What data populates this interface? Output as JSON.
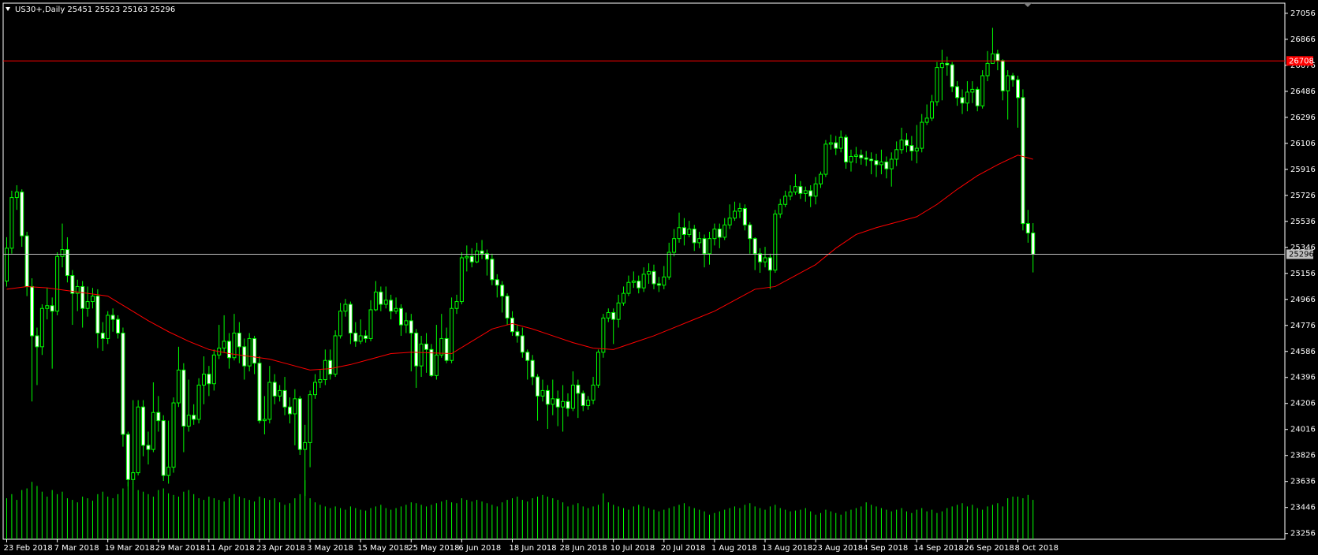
{
  "chart_data": {
    "type": "candlestick",
    "title": "US30+,Daily  25451 25523 25163 25296",
    "categories": [
      "23 Feb 2018",
      null,
      null,
      null,
      null,
      null,
      null,
      null,
      null,
      null,
      "7 Mar 2018",
      null,
      null,
      null,
      null,
      null,
      null,
      null,
      null,
      null,
      "19 Mar 2018",
      null,
      null,
      null,
      null,
      null,
      null,
      null,
      null,
      null,
      "29 Mar 2018",
      null,
      null,
      null,
      null,
      null,
      null,
      null,
      null,
      null,
      "11 Apr 2018",
      null,
      null,
      null,
      null,
      null,
      null,
      null,
      null,
      null,
      "23 Apr 2018",
      null,
      null,
      null,
      null,
      null,
      null,
      null,
      null,
      null,
      "3 May 2018",
      null,
      null,
      null,
      null,
      null,
      null,
      null,
      null,
      null,
      "15 May 2018",
      null,
      null,
      null,
      null,
      null,
      null,
      null,
      null,
      null,
      "25 May 2018",
      null,
      null,
      null,
      null,
      null,
      null,
      null,
      null,
      null,
      "6 Jun 2018",
      null,
      null,
      null,
      null,
      null,
      null,
      null,
      null,
      null,
      "18 Jun 2018",
      null,
      null,
      null,
      null,
      null,
      null,
      null,
      null,
      null,
      "28 Jun 2018",
      null,
      null,
      null,
      null,
      null,
      null,
      null,
      null,
      null,
      "10 Jul 2018",
      null,
      null,
      null,
      null,
      null,
      null,
      null,
      null,
      null,
      "20 Jul 2018",
      null,
      null,
      null,
      null,
      null,
      null,
      null,
      null,
      null,
      "1 Aug 2018",
      null,
      null,
      null,
      null,
      null,
      null,
      null,
      null,
      null,
      "13 Aug 2018",
      null,
      null,
      null,
      null,
      null,
      null,
      null,
      null,
      null,
      "23 Aug 2018",
      null,
      null,
      null,
      null,
      null,
      null,
      null,
      null,
      null,
      "4 Sep 2018",
      null,
      null,
      null,
      null,
      null,
      null,
      null,
      null,
      null,
      "14 Sep 2018",
      null,
      null,
      null,
      null,
      null,
      null,
      null,
      null,
      null,
      "26 Sep 2018",
      null,
      null,
      null,
      null,
      null,
      null,
      null,
      null,
      null,
      "8 Oct 2018",
      null,
      null,
      null
    ],
    "opens": [
      25100,
      25340,
      25710,
      25750,
      25430,
      25060,
      24700,
      24620,
      24900,
      24920,
      24880,
      25280,
      25330,
      25140,
      25010,
      25060,
      24900,
      24950,
      24990,
      24720,
      24680,
      24850,
      24820,
      24720,
      23980,
      23650,
      23700,
      24180,
      23900,
      23870,
      24140,
      24080,
      23680,
      23740,
      24210,
      24450,
      24040,
      24120,
      24090,
      24340,
      24420,
      24350,
      24560,
      24610,
      24660,
      24540,
      24720,
      24620,
      24480,
      24680,
      24500,
      24080,
      24090,
      24360,
      24260,
      24300,
      24180,
      24130,
      24240,
      23870,
      23920,
      24270,
      24360,
      24380,
      24520,
      24420,
      24700,
      24880,
      24930,
      24720,
      24660,
      24700,
      24680,
      24890,
      25020,
      24930,
      24960,
      24880,
      24900,
      24780,
      24810,
      24720,
      24480,
      24640,
      24600,
      24410,
      24560,
      24680,
      24520,
      24900,
      24950,
      25270,
      25280,
      25240,
      25320,
      25300,
      25260,
      25110,
      25070,
      24990,
      24830,
      24730,
      24700,
      24580,
      24520,
      24400,
      24260,
      24300,
      24200,
      24240,
      24180,
      24220,
      24170,
      24340,
      24280,
      24190,
      24230,
      24340,
      24580,
      24830,
      24870,
      24820,
      24940,
      25010,
      25090,
      25100,
      25050,
      25150,
      25170,
      25080,
      25070,
      25130,
      25310,
      25410,
      25490,
      25440,
      25480,
      25380,
      25410,
      25300,
      25410,
      25480,
      25420,
      25510,
      25560,
      25610,
      25630,
      25510,
      25410,
      25300,
      25240,
      25270,
      25180,
      25590,
      25660,
      25720,
      25750,
      25790,
      25740,
      25760,
      25720,
      25810,
      25880,
      26100,
      26110,
      26070,
      26150,
      25970,
      26010,
      26020,
      26000,
      25990,
      25980,
      25950,
      25970,
      25920,
      25990,
      26060,
      26130,
      26090,
      26050,
      26070,
      26260,
      26290,
      26410,
      26660,
      26690,
      26680,
      26520,
      26440,
      26400,
      26480,
      26500,
      26380,
      26600,
      26690,
      26760,
      26710,
      26490,
      26600,
      26570,
      26440,
      25520,
      25451
    ],
    "highs": [
      25420,
      25760,
      25800,
      25770,
      25460,
      25120,
      24760,
      24930,
      25050,
      24980,
      25310,
      25520,
      25420,
      25180,
      25110,
      25100,
      25060,
      25050,
      25040,
      24800,
      24880,
      24900,
      24850,
      24760,
      24000,
      24230,
      24230,
      24230,
      24000,
      24360,
      24260,
      24120,
      24080,
      24250,
      24620,
      24500,
      24380,
      24200,
      24390,
      24550,
      24480,
      24600,
      24780,
      24850,
      24720,
      24860,
      24800,
      24680,
      24720,
      24700,
      24550,
      24260,
      24480,
      24420,
      24340,
      24400,
      24250,
      24310,
      24260,
      24050,
      24300,
      24420,
      24450,
      24600,
      24600,
      24740,
      24940,
      24970,
      24950,
      24800,
      24820,
      24740,
      24960,
      25100,
      25060,
      25060,
      25000,
      24980,
      24930,
      24870,
      24860,
      24750,
      24700,
      24720,
      24640,
      24780,
      24860,
      24760,
      24980,
      25000,
      25310,
      25360,
      25340,
      25380,
      25400,
      25330,
      25300,
      25150,
      25100,
      25010,
      24880,
      24780,
      24760,
      24600,
      24560,
      24420,
      24380,
      24340,
      24380,
      24300,
      24340,
      24280,
      24440,
      24380,
      24300,
      24260,
      24400,
      24600,
      24860,
      24900,
      24900,
      25000,
      25060,
      25140,
      25170,
      25140,
      25200,
      25230,
      25220,
      25130,
      25210,
      25380,
      25480,
      25600,
      25560,
      25540,
      25510,
      25460,
      25440,
      25460,
      25520,
      25520,
      25560,
      25660,
      25680,
      25670,
      25660,
      25530,
      25420,
      25340,
      25350,
      25300,
      25620,
      25700,
      25760,
      25800,
      25880,
      25830,
      25790,
      25800,
      25860,
      25900,
      26130,
      26170,
      26160,
      26200,
      26170,
      26060,
      26080,
      26060,
      26050,
      26040,
      26030,
      26060,
      26010,
      26040,
      26120,
      26220,
      26180,
      26160,
      26240,
      26320,
      26390,
      26460,
      26700,
      26790,
      26740,
      26700,
      26560,
      26500,
      26560,
      26560,
      26520,
      26640,
      26780,
      26950,
      26790,
      26720,
      26640,
      26620,
      26600,
      26500,
      25620,
      25523
    ],
    "lows": [
      25060,
      25300,
      25620,
      25350,
      24990,
      24220,
      24340,
      24560,
      24820,
      24460,
      24850,
      25200,
      25090,
      24780,
      24880,
      24760,
      24840,
      24900,
      24610,
      24590,
      24640,
      24730,
      24680,
      23890,
      23600,
      23620,
      23680,
      23820,
      23760,
      23850,
      24000,
      23640,
      23620,
      23700,
      24180,
      23850,
      24000,
      24050,
      24060,
      24200,
      24260,
      24300,
      24530,
      24580,
      24460,
      24520,
      24500,
      24380,
      24440,
      24420,
      24060,
      23980,
      24060,
      24200,
      24220,
      24120,
      24060,
      23900,
      23830,
      23530,
      23740,
      24240,
      24320,
      24340,
      24380,
      24400,
      24680,
      24840,
      24640,
      24620,
      24640,
      24650,
      24660,
      24880,
      24880,
      24900,
      24820,
      24860,
      24700,
      24720,
      24440,
      24320,
      24400,
      24430,
      24400,
      24380,
      24540,
      24500,
      24500,
      24860,
      24930,
      25170,
      25200,
      25230,
      25260,
      25140,
      25070,
      24980,
      24870,
      24780,
      24700,
      24650,
      24540,
      24380,
      24340,
      24080,
      24220,
      24020,
      24120,
      24040,
      24000,
      24110,
      24150,
      24100,
      24150,
      24160,
      24200,
      24320,
      24540,
      24800,
      24640,
      24760,
      24920,
      24990,
      25050,
      25010,
      25020,
      25080,
      25040,
      25020,
      25040,
      25110,
      25280,
      25380,
      25360,
      25420,
      25320,
      25340,
      25200,
      25220,
      25360,
      25340,
      25400,
      25480,
      25540,
      25560,
      25470,
      25300,
      25180,
      25160,
      25200,
      25040,
      25160,
      25560,
      25640,
      25690,
      25730,
      25700,
      25680,
      25640,
      25660,
      25780,
      25860,
      26060,
      26020,
      26040,
      25920,
      25900,
      25960,
      25950,
      25940,
      25880,
      25860,
      25880,
      25850,
      25790,
      25940,
      26030,
      26040,
      25980,
      25960,
      26040,
      26240,
      26270,
      26380,
      26420,
      26600,
      26480,
      26380,
      26320,
      26340,
      26400,
      26340,
      26360,
      26560,
      26700,
      26640,
      26420,
      26280,
      26520,
      26220,
      25470,
      25380,
      25163
    ],
    "closes": [
      25340,
      25710,
      25750,
      25430,
      25060,
      24700,
      24620,
      24900,
      24920,
      24880,
      25280,
      25330,
      25140,
      25010,
      25060,
      24900,
      24950,
      24990,
      24720,
      24680,
      24850,
      24820,
      24720,
      23980,
      23650,
      23700,
      24180,
      23900,
      23870,
      24140,
      24080,
      23680,
      23740,
      24210,
      24450,
      24040,
      24120,
      24090,
      24340,
      24420,
      24350,
      24560,
      24610,
      24660,
      24540,
      24720,
      24620,
      24480,
      24680,
      24500,
      24080,
      24090,
      24360,
      24260,
      24300,
      24180,
      24130,
      24240,
      23870,
      23920,
      24270,
      24360,
      24380,
      24520,
      24420,
      24700,
      24880,
      24930,
      24720,
      24660,
      24700,
      24680,
      24890,
      25020,
      24930,
      24960,
      24880,
      24900,
      24780,
      24810,
      24720,
      24480,
      24640,
      24600,
      24410,
      24560,
      24680,
      24520,
      24900,
      24950,
      25270,
      25280,
      25240,
      25320,
      25300,
      25260,
      25110,
      25070,
      24990,
      24830,
      24730,
      24700,
      24580,
      24520,
      24400,
      24260,
      24300,
      24200,
      24240,
      24180,
      24220,
      24170,
      24340,
      24280,
      24190,
      24230,
      24340,
      24580,
      24830,
      24870,
      24820,
      24940,
      25010,
      25090,
      25100,
      25050,
      25150,
      25170,
      25080,
      25070,
      25130,
      25310,
      25410,
      25490,
      25440,
      25480,
      25380,
      25410,
      25300,
      25410,
      25480,
      25420,
      25510,
      25560,
      25610,
      25630,
      25510,
      25410,
      25300,
      25240,
      25270,
      25180,
      25590,
      25660,
      25720,
      25750,
      25790,
      25740,
      25760,
      25720,
      25810,
      25880,
      26100,
      26110,
      26070,
      26150,
      25970,
      26010,
      26020,
      26000,
      25990,
      25980,
      25950,
      25970,
      25920,
      25990,
      26060,
      26130,
      26090,
      26050,
      26070,
      26260,
      26290,
      26410,
      26660,
      26690,
      26680,
      26520,
      26440,
      26400,
      26480,
      26500,
      26380,
      26600,
      26690,
      26760,
      26710,
      26490,
      26600,
      26570,
      26440,
      25520,
      25451,
      25296
    ],
    "volumes": [
      50,
      55,
      48,
      60,
      62,
      70,
      65,
      58,
      52,
      60,
      55,
      58,
      50,
      48,
      45,
      52,
      50,
      47,
      55,
      58,
      52,
      50,
      55,
      62,
      70,
      68,
      60,
      58,
      55,
      52,
      60,
      62,
      56,
      54,
      52,
      58,
      60,
      55,
      50,
      48,
      52,
      50,
      48,
      46,
      50,
      55,
      52,
      50,
      48,
      46,
      52,
      50,
      48,
      50,
      45,
      42,
      44,
      50,
      55,
      72,
      50,
      45,
      42,
      40,
      38,
      40,
      38,
      36,
      40,
      38,
      36,
      35,
      38,
      40,
      42,
      38,
      36,
      38,
      40,
      42,
      45,
      44,
      42,
      40,
      42,
      44,
      46,
      48,
      45,
      44,
      50,
      48,
      46,
      48,
      46,
      44,
      42,
      40,
      45,
      48,
      50,
      52,
      48,
      46,
      50,
      52,
      54,
      52,
      50,
      48,
      45,
      40,
      42,
      44,
      40,
      38,
      40,
      42,
      56,
      45,
      42,
      40,
      38,
      36,
      40,
      42,
      40,
      38,
      36,
      34,
      36,
      38,
      40,
      42,
      44,
      40,
      38,
      36,
      34,
      30,
      32,
      34,
      36,
      38,
      40,
      38,
      42,
      44,
      40,
      38,
      36,
      40,
      42,
      38,
      36,
      34,
      35,
      36,
      38,
      34,
      30,
      32,
      36,
      34,
      32,
      30,
      34,
      36,
      38,
      40,
      45,
      42,
      40,
      38,
      36,
      34,
      36,
      38,
      34,
      32,
      36,
      38,
      34,
      36,
      32,
      34,
      38,
      40,
      42,
      44,
      40,
      42,
      38,
      36,
      40,
      42,
      44,
      40,
      50,
      52,
      52,
      50,
      54,
      48
    ],
    "vlim": [
      0,
      100
    ],
    "ma": {
      "color": "#ff0000",
      "x": [
        0,
        4,
        8,
        12,
        16,
        20,
        24,
        28,
        32,
        36,
        40,
        44,
        48,
        52,
        56,
        60,
        64,
        68,
        72,
        76,
        80,
        84,
        88,
        92,
        96,
        100,
        104,
        108,
        112,
        116,
        120,
        124,
        128,
        132,
        136,
        140,
        144,
        148,
        152,
        156,
        160,
        164,
        168,
        172,
        176,
        180,
        184,
        188,
        192,
        196,
        200,
        203
      ],
      "values": [
        25040,
        25060,
        25050,
        25030,
        25010,
        24990,
        24900,
        24810,
        24730,
        24660,
        24600,
        24570,
        24550,
        24530,
        24490,
        24450,
        24460,
        24490,
        24530,
        24570,
        24580,
        24575,
        24570,
        24660,
        24750,
        24790,
        24750,
        24700,
        24650,
        24610,
        24600,
        24650,
        24700,
        24760,
        24820,
        24880,
        24960,
        25040,
        25060,
        25140,
        25220,
        25340,
        25440,
        25490,
        25530,
        25570,
        25660,
        25770,
        25870,
        25950,
        26020,
        25990
      ]
    },
    "ylim": [
      23214,
      27130
    ],
    "yticks": [
      23256,
      23446,
      23636,
      23826,
      24016,
      24206,
      24396,
      24586,
      24776,
      24966,
      25156,
      25346,
      25536,
      25726,
      25916,
      26106,
      26296,
      26486,
      26676,
      26866,
      27056
    ],
    "hlines": [
      {
        "value": 26708,
        "color": "#ff0000"
      },
      {
        "value": 25296,
        "color": "#c0c0c0"
      }
    ],
    "candle_color": "#00ff00",
    "up_color": "#000000",
    "down_color": "#ffffff",
    "volume_color": "#00ff00"
  }
}
